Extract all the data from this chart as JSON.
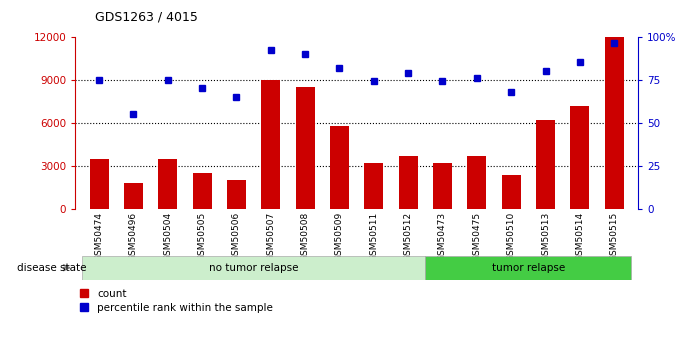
{
  "title": "GDS1263 / 4015",
  "categories": [
    "GSM50474",
    "GSM50496",
    "GSM50504",
    "GSM50505",
    "GSM50506",
    "GSM50507",
    "GSM50508",
    "GSM50509",
    "GSM50511",
    "GSM50512",
    "GSM50473",
    "GSM50475",
    "GSM50510",
    "GSM50513",
    "GSM50514",
    "GSM50515"
  ],
  "bar_values": [
    3500,
    1800,
    3500,
    2500,
    2000,
    9000,
    8500,
    5800,
    3200,
    3700,
    3200,
    3700,
    2400,
    6200,
    7200,
    12000
  ],
  "percentile_values": [
    75,
    55,
    75,
    70,
    65,
    92,
    90,
    82,
    74,
    79,
    74,
    76,
    68,
    80,
    85,
    96
  ],
  "bar_color": "#cc0000",
  "marker_color": "#0000cc",
  "ylim_left": [
    0,
    12000
  ],
  "ylim_right": [
    0,
    100
  ],
  "yticks_left": [
    0,
    3000,
    6000,
    9000,
    12000
  ],
  "yticks_right": [
    0,
    25,
    50,
    75,
    100
  ],
  "no_tumor_count": 10,
  "tumor_count": 6,
  "no_tumor_label": "no tumor relapse",
  "tumor_label": "tumor relapse",
  "disease_state_label": "disease state",
  "legend_bar_label": "count",
  "legend_marker_label": "percentile rank within the sample",
  "bg_color_xtick": "#d8d8d8",
  "bg_color_notumor": "#cceecc",
  "bg_color_tumor": "#44cc44",
  "dotted_lines": [
    3000,
    6000,
    9000
  ]
}
